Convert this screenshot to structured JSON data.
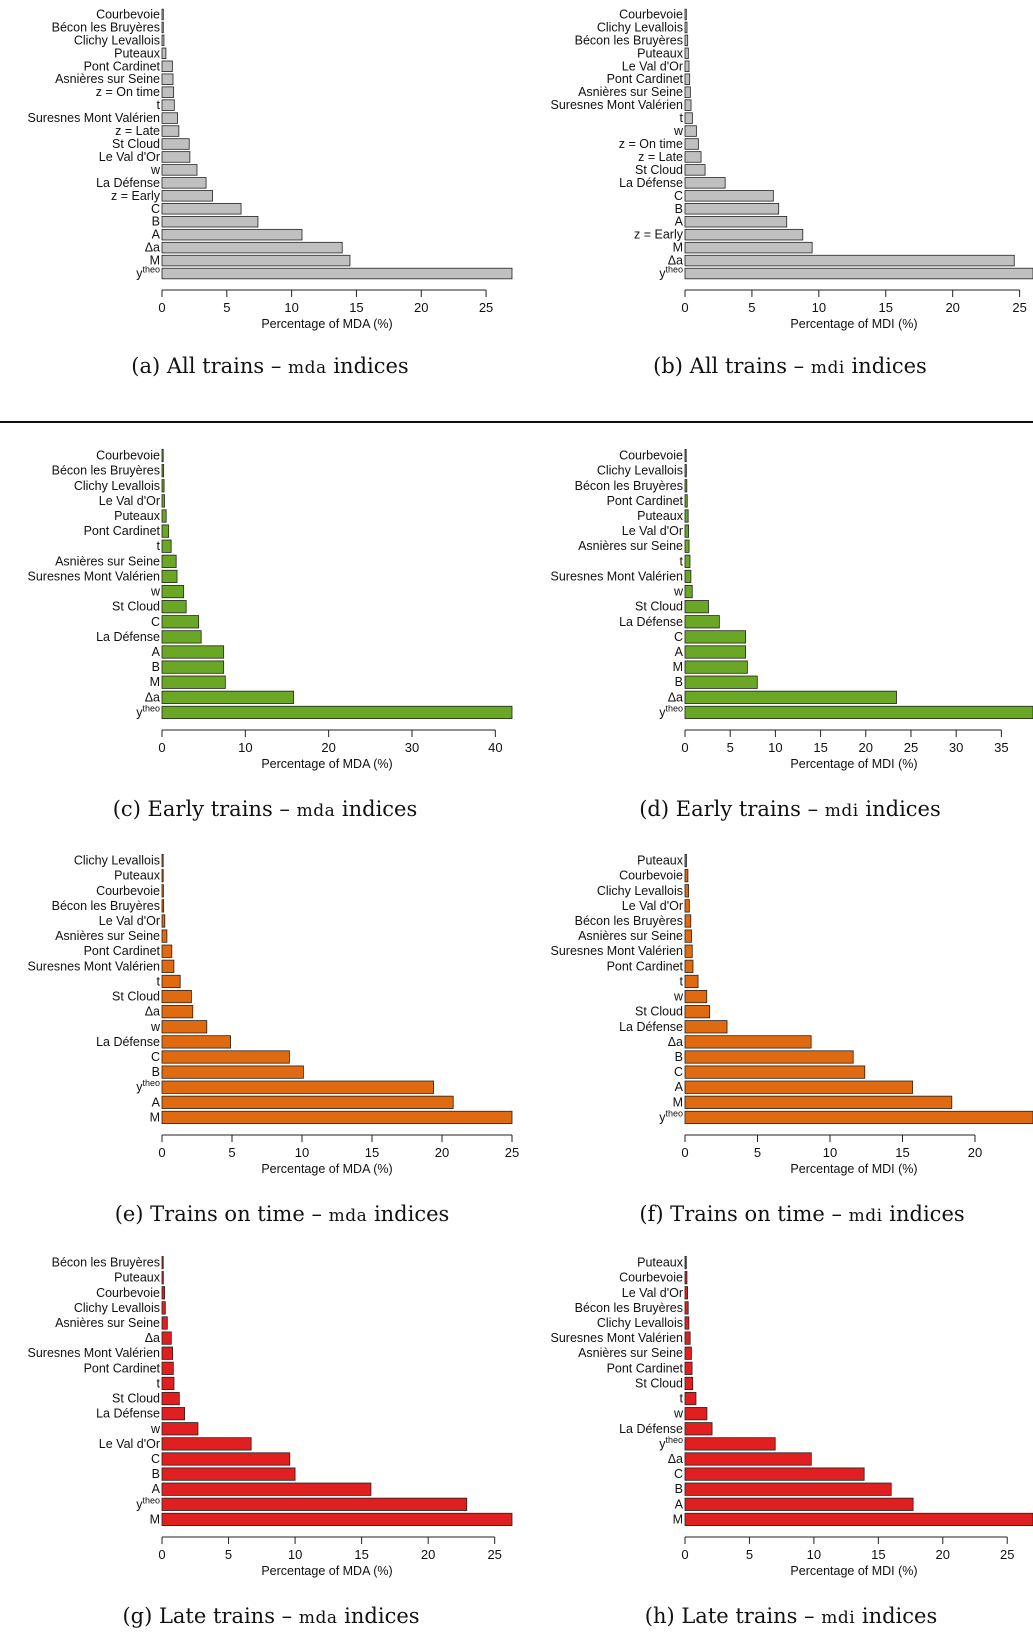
{
  "chart_data": [
    {
      "id": "a",
      "type": "bar",
      "orientation": "horizontal",
      "xlabel": "Percentage of MDA (%)",
      "xlim": [
        0,
        27
      ],
      "xticks": [
        0,
        5,
        10,
        15,
        20,
        25
      ],
      "color": "#c0c0c0",
      "categories": [
        "Courbevoie",
        "Bécon les Bruyères",
        "Clichy Levallois",
        "Puteaux",
        "Pont Cardinet",
        "Asnières sur Seine",
        "z = On time",
        "t",
        "Suresnes Mont Valérien",
        "z = Late",
        "St Cloud",
        "Le Val d'Or",
        "w",
        "La Défense",
        "z = Early",
        "C",
        "B",
        "A",
        "Δa",
        "M",
        "y^theo"
      ],
      "values": [
        0.1,
        0.1,
        0.15,
        0.3,
        0.8,
        0.85,
        0.9,
        0.95,
        1.2,
        1.3,
        2.1,
        2.15,
        2.7,
        3.4,
        3.9,
        6.1,
        7.4,
        10.8,
        13.9,
        14.5,
        27.0
      ]
    },
    {
      "id": "b",
      "type": "bar",
      "orientation": "horizontal",
      "xlabel": "Percentage of MDI (%)",
      "xlim": [
        0,
        26
      ],
      "xticks": [
        0,
        5,
        10,
        15,
        20,
        25
      ],
      "color": "#c0c0c0",
      "categories": [
        "Courbevoie",
        "Clichy Levallois",
        "Bécon les Bruyères",
        "Puteaux",
        "Le Val d'Or",
        "Pont Cardinet",
        "Asnières sur Seine",
        "Suresnes Mont Valérien",
        "t",
        "w",
        "z = On time",
        "z = Late",
        "St Cloud",
        "La Défense",
        "C",
        "B",
        "A",
        "z = Early",
        "M",
        "Δa",
        "y^theo"
      ],
      "values": [
        0.1,
        0.15,
        0.2,
        0.25,
        0.3,
        0.35,
        0.4,
        0.45,
        0.55,
        0.85,
        1.0,
        1.2,
        1.5,
        3.0,
        6.6,
        7.0,
        7.6,
        8.8,
        9.5,
        24.6,
        26.0
      ]
    },
    {
      "id": "c",
      "type": "bar",
      "orientation": "horizontal",
      "xlabel": "Percentage of MDA (%)",
      "xlim": [
        0,
        42
      ],
      "xticks": [
        0,
        10,
        20,
        30,
        40
      ],
      "color": "#6aa724",
      "categories": [
        "Courbevoie",
        "Bécon les Bruyères",
        "Clichy Levallois",
        "Le Val d'Or",
        "Puteaux",
        "Pont Cardinet",
        "t",
        "Asnières sur Seine",
        "Suresnes Mont Valérien",
        "w",
        "St Cloud",
        "C",
        "La Défense",
        "A",
        "B",
        "M",
        "Δa",
        "y^theo"
      ],
      "values": [
        0.1,
        0.2,
        0.25,
        0.3,
        0.5,
        0.8,
        1.1,
        1.7,
        1.8,
        2.6,
        2.9,
        4.4,
        4.7,
        7.4,
        7.4,
        7.6,
        15.8,
        42.0
      ]
    },
    {
      "id": "d",
      "type": "bar",
      "orientation": "horizontal",
      "xlabel": "Percentage of MDI (%)",
      "xlim": [
        0,
        38.5
      ],
      "xticks": [
        0,
        5,
        10,
        15,
        20,
        25,
        30,
        35
      ],
      "color": "#6aa724",
      "categories": [
        "Courbevoie",
        "Clichy Levallois",
        "Bécon les Bruyères",
        "Pont Cardinet",
        "Puteaux",
        "Le Val d'Or",
        "Asnières sur Seine",
        "t",
        "Suresnes Mont Valérien",
        "w",
        "St Cloud",
        "La Défense",
        "C",
        "A",
        "M",
        "B",
        "Δa",
        "y^theo"
      ],
      "values": [
        0.1,
        0.15,
        0.2,
        0.25,
        0.35,
        0.4,
        0.45,
        0.55,
        0.65,
        0.8,
        2.6,
        3.8,
        6.7,
        6.7,
        6.9,
        8.0,
        23.4,
        38.5
      ]
    },
    {
      "id": "e",
      "type": "bar",
      "orientation": "horizontal",
      "xlabel": "Percentage of MDA (%)",
      "xlim": [
        0,
        25
      ],
      "xticks": [
        0,
        5,
        10,
        15,
        20,
        25
      ],
      "color": "#e06a0f",
      "categories": [
        "Clichy Levallois",
        "Puteaux",
        "Courbevoie",
        "Bécon les Bruyères",
        "Le Val d'Or",
        "Asnières sur Seine",
        "Pont Cardinet",
        "Suresnes Mont Valérien",
        "t",
        "St Cloud",
        "Δa",
        "w",
        "La Défense",
        "C",
        "B",
        "y^theo",
        "A",
        "M"
      ],
      "values": [
        0.05,
        0.08,
        0.1,
        0.12,
        0.2,
        0.35,
        0.7,
        0.85,
        1.3,
        2.1,
        2.2,
        3.2,
        4.9,
        9.1,
        10.1,
        19.4,
        20.8,
        25.0
      ]
    },
    {
      "id": "f",
      "type": "bar",
      "orientation": "horizontal",
      "xlabel": "Percentage of MDI (%)",
      "xlim": [
        0,
        24
      ],
      "xticks": [
        0,
        5,
        10,
        15,
        20
      ],
      "color": "#e06a0f",
      "categories": [
        "Puteaux",
        "Courbevoie",
        "Clichy Levallois",
        "Le Val d'Or",
        "Bécon les Bruyères",
        "Asnières sur Seine",
        "Suresnes Mont Valérien",
        "Pont Cardinet",
        "t",
        "w",
        "St Cloud",
        "La Défense",
        "Δa",
        "B",
        "C",
        "A",
        "M",
        "y^theo"
      ],
      "values": [
        0.1,
        0.2,
        0.25,
        0.3,
        0.4,
        0.45,
        0.5,
        0.55,
        0.9,
        1.5,
        1.7,
        2.9,
        8.7,
        11.6,
        12.4,
        15.7,
        18.4,
        24.0
      ]
    },
    {
      "id": "g",
      "type": "bar",
      "orientation": "horizontal",
      "xlabel": "Percentage of MDA (%)",
      "xlim": [
        0,
        26.3
      ],
      "xticks": [
        0,
        5,
        10,
        15,
        20,
        25
      ],
      "color": "#e02020",
      "categories": [
        "Bécon les Bruyères",
        "Puteaux",
        "Courbevoie",
        "Clichy Levallois",
        "Asnières sur Seine",
        "Δa",
        "Suresnes Mont Valérien",
        "Pont Cardinet",
        "t",
        "St Cloud",
        "La Défense",
        "w",
        "Le Val d'Or",
        "C",
        "B",
        "A",
        "y^theo",
        "M"
      ],
      "values": [
        0.05,
        0.1,
        0.2,
        0.25,
        0.4,
        0.7,
        0.8,
        0.85,
        0.9,
        1.3,
        1.7,
        2.7,
        6.7,
        9.6,
        10.0,
        15.7,
        22.9,
        26.3
      ]
    },
    {
      "id": "h",
      "type": "bar",
      "orientation": "horizontal",
      "xlabel": "Percentage of MDI (%)",
      "xlim": [
        0,
        27
      ],
      "xticks": [
        0,
        5,
        10,
        15,
        20,
        25
      ],
      "color": "#e02020",
      "categories": [
        "Puteaux",
        "Courbevoie",
        "Le Val d'Or",
        "Bécon les Bruyères",
        "Clichy Levallois",
        "Suresnes Mont Valérien",
        "Asnières sur Seine",
        "Pont Cardinet",
        "St Cloud",
        "t",
        "w",
        "La Défense",
        "y^theo",
        "Δa",
        "C",
        "B",
        "A",
        "M"
      ],
      "values": [
        0.1,
        0.15,
        0.2,
        0.25,
        0.3,
        0.4,
        0.5,
        0.55,
        0.6,
        0.85,
        1.7,
        2.1,
        7.0,
        9.8,
        13.9,
        16.0,
        17.7,
        27.0
      ]
    }
  ],
  "captions": {
    "a": {
      "pre": "(a)  All trains – ",
      "sc": "mda",
      "post": " indices"
    },
    "b": {
      "pre": "(b)  All trains – ",
      "sc": "mdi",
      "post": " indices"
    },
    "c": {
      "pre": "(c)  Early trains – ",
      "sc": "mda",
      "post": " indices"
    },
    "d": {
      "pre": "(d)  Early trains – ",
      "sc": "mdi",
      "post": " indices"
    },
    "e": {
      "pre": "(e)  Trains on time – ",
      "sc": "mda",
      "post": " indices"
    },
    "f": {
      "pre": "(f)  Trains on time – ",
      "sc": "mdi",
      "post": " indices"
    },
    "g": {
      "pre": "(g)  Late trains – ",
      "sc": "mda",
      "post": " indices"
    },
    "h": {
      "pre": "(h)  Late trains – ",
      "sc": "mdi",
      "post": " indices"
    }
  }
}
